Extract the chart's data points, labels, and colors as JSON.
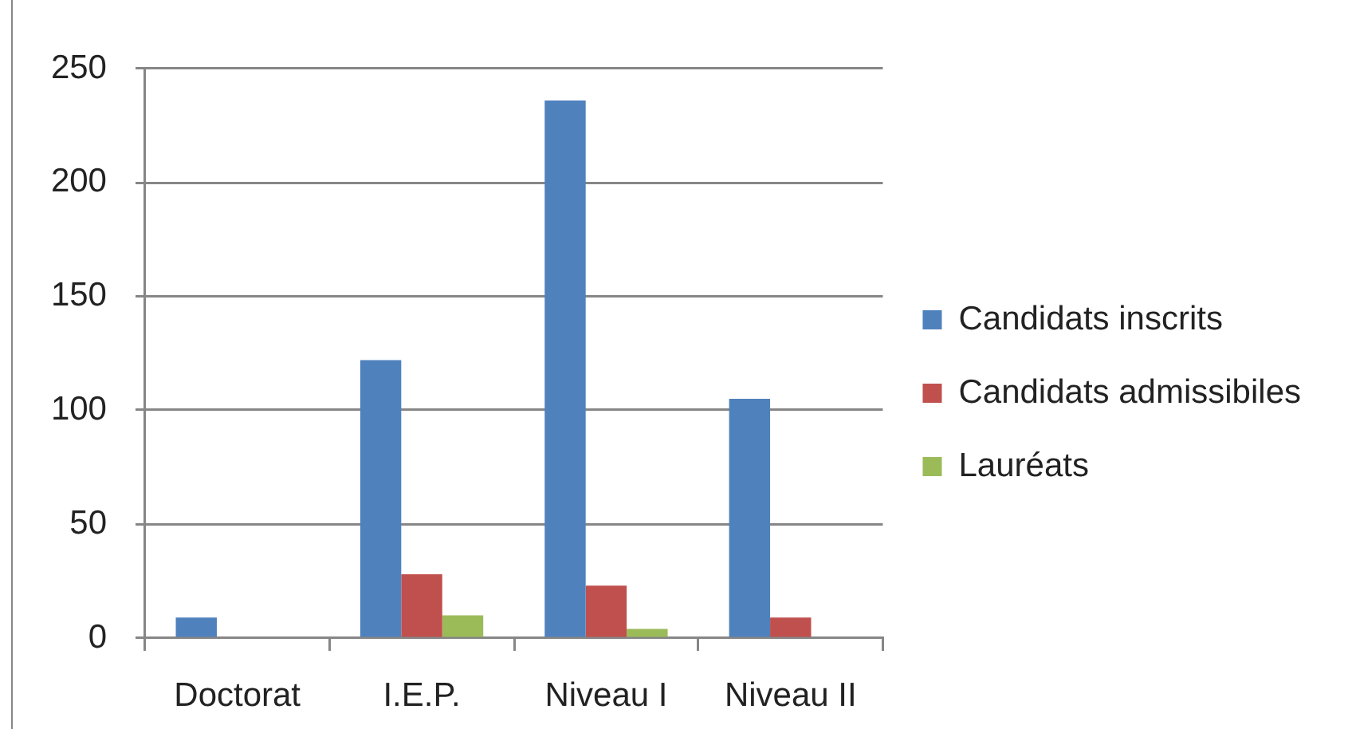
{
  "chart_data": {
    "type": "bar",
    "categories": [
      "Doctorat",
      "I.E.P.",
      "Niveau I",
      "Niveau II"
    ],
    "series": [
      {
        "name": "Candidats inscrits",
        "color": "#4f81bd",
        "values": [
          9,
          122,
          236,
          105
        ]
      },
      {
        "name": "Candidats admissibiles",
        "color": "#c0504d",
        "values": [
          0,
          28,
          23,
          9
        ]
      },
      {
        "name": "Lauréats",
        "color": "#9bbb59",
        "values": [
          0,
          10,
          4,
          0
        ]
      }
    ],
    "ylim": [
      0,
      250
    ],
    "yticks": [
      0,
      50,
      100,
      150,
      200,
      250
    ],
    "grid": "y",
    "legend": "right"
  }
}
